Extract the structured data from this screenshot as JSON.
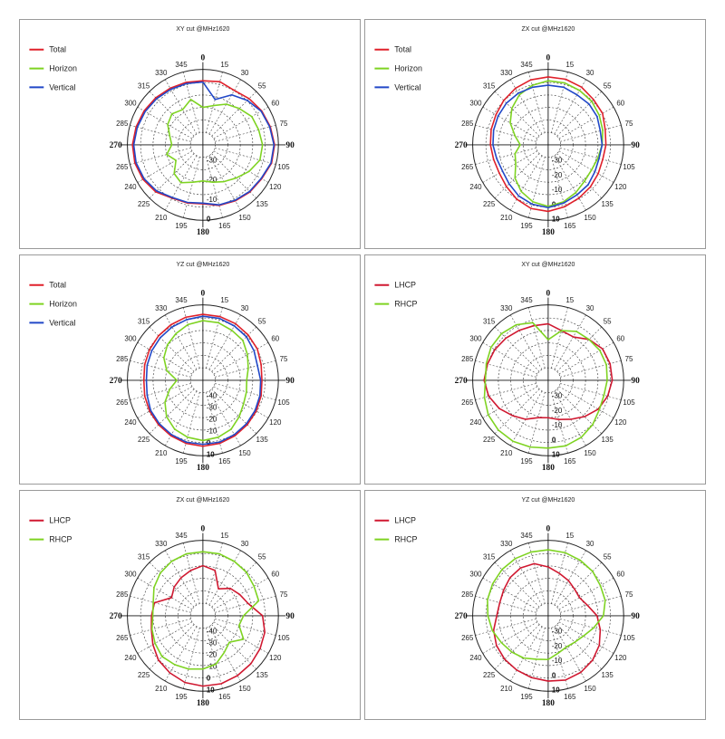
{
  "chart_data": [
    {
      "type": "polar_line",
      "title": "XY cut @MHz1620",
      "theta_ticks": [
        "0",
        "15",
        "30",
        "55",
        "60",
        "75",
        "90",
        "105",
        "120",
        "135",
        "150",
        "165",
        "180",
        "195",
        "210",
        "225",
        "240",
        "265",
        "270",
        "285",
        "300",
        "315",
        "330",
        "345"
      ],
      "radial_labels": [
        "-30",
        "-20",
        "-10",
        "0"
      ],
      "legend": "top-left",
      "series": [
        {
          "name": "Total",
          "color": "#e0202a",
          "values": [
            0.82,
            0.84,
            0.8,
            0.84,
            0.88,
            0.91,
            0.94,
            0.93,
            0.88,
            0.86,
            0.83,
            0.8,
            0.74,
            0.76,
            0.78,
            0.86,
            0.9,
            0.92,
            0.92,
            0.9,
            0.88,
            0.86,
            0.84,
            0.83,
            0.82
          ]
        },
        {
          "name": "Horizon",
          "color": "#7ed321",
          "values": [
            0.4,
            0.45,
            0.55,
            0.62,
            0.7,
            0.72,
            0.75,
            0.74,
            0.65,
            0.55,
            0.48,
            0.42,
            0.38,
            0.42,
            0.5,
            0.45,
            0.3,
            0.4,
            0.3,
            0.35,
            0.45,
            0.5,
            0.45,
            0.55,
            0.4
          ]
        },
        {
          "name": "Vertical",
          "color": "#2148c8",
          "values": [
            0.8,
            0.55,
            0.72,
            0.8,
            0.87,
            0.9,
            0.93,
            0.92,
            0.87,
            0.85,
            0.82,
            0.79,
            0.73,
            0.75,
            0.77,
            0.84,
            0.88,
            0.9,
            0.9,
            0.88,
            0.86,
            0.84,
            0.82,
            0.81,
            0.8
          ]
        }
      ]
    },
    {
      "type": "polar_line",
      "title": "ZX cut @MHz1620",
      "theta_ticks": [
        "0",
        "15",
        "30",
        "55",
        "60",
        "75",
        "90",
        "105",
        "120",
        "135",
        "150",
        "165",
        "180",
        "195",
        "210",
        "225",
        "240",
        "265",
        "270",
        "285",
        "300",
        "315",
        "330",
        "345"
      ],
      "radial_labels": [
        "-30",
        "-20",
        "-10",
        "0",
        "10"
      ],
      "legend": "top-left",
      "series": [
        {
          "name": "Total",
          "color": "#e0202a",
          "values": [
            0.88,
            0.88,
            0.86,
            0.82,
            0.8,
            0.74,
            0.72,
            0.7,
            0.72,
            0.75,
            0.78,
            0.82,
            0.86,
            0.85,
            0.8,
            0.74,
            0.7,
            0.7,
            0.72,
            0.74,
            0.76,
            0.8,
            0.84,
            0.87,
            0.88
          ]
        },
        {
          "name": "Horizon",
          "color": "#7ed321",
          "values": [
            0.82,
            0.82,
            0.8,
            0.78,
            0.74,
            0.7,
            0.66,
            0.62,
            0.6,
            0.62,
            0.68,
            0.74,
            0.78,
            0.74,
            0.66,
            0.55,
            0.4,
            0.35,
            0.25,
            0.35,
            0.5,
            0.62,
            0.72,
            0.78,
            0.82
          ]
        },
        {
          "name": "Vertical",
          "color": "#2148c8",
          "values": [
            0.75,
            0.75,
            0.72,
            0.72,
            0.7,
            0.66,
            0.66,
            0.64,
            0.66,
            0.7,
            0.72,
            0.76,
            0.8,
            0.78,
            0.74,
            0.68,
            0.64,
            0.65,
            0.68,
            0.7,
            0.72,
            0.74,
            0.75,
            0.75,
            0.75
          ]
        }
      ]
    },
    {
      "type": "polar_line",
      "title": "YZ cut @MHz1620",
      "theta_ticks": [
        "0",
        "15",
        "30",
        "55",
        "60",
        "75",
        "90",
        "105",
        "120",
        "135",
        "150",
        "165",
        "180",
        "195",
        "210",
        "225",
        "240",
        "265",
        "270",
        "285",
        "300",
        "315",
        "330",
        "345"
      ],
      "radial_labels": [
        "-40",
        "-30",
        "-20",
        "-10",
        "0",
        "10"
      ],
      "legend": "top-left",
      "series": [
        {
          "name": "Total",
          "color": "#e0202a",
          "values": [
            0.85,
            0.85,
            0.84,
            0.82,
            0.8,
            0.76,
            0.74,
            0.76,
            0.78,
            0.8,
            0.82,
            0.84,
            0.85,
            0.84,
            0.82,
            0.8,
            0.78,
            0.76,
            0.74,
            0.76,
            0.78,
            0.8,
            0.82,
            0.84,
            0.85
          ]
        },
        {
          "name": "Horizon",
          "color": "#7ed321",
          "values": [
            0.75,
            0.75,
            0.72,
            0.7,
            0.62,
            0.55,
            0.5,
            0.52,
            0.55,
            0.62,
            0.7,
            0.74,
            0.76,
            0.74,
            0.7,
            0.62,
            0.5,
            0.35,
            0.22,
            0.4,
            0.52,
            0.6,
            0.66,
            0.72,
            0.75
          ]
        },
        {
          "name": "Vertical",
          "color": "#2148c8",
          "values": [
            0.82,
            0.82,
            0.8,
            0.78,
            0.74,
            0.7,
            0.72,
            0.74,
            0.76,
            0.78,
            0.8,
            0.82,
            0.82,
            0.82,
            0.8,
            0.78,
            0.76,
            0.72,
            0.7,
            0.72,
            0.74,
            0.76,
            0.78,
            0.8,
            0.82
          ]
        }
      ]
    },
    {
      "type": "polar_line",
      "title": "XY cut @MHz1620",
      "theta_ticks": [
        "0",
        "15",
        "30",
        "55",
        "60",
        "75",
        "90",
        "105",
        "120",
        "135",
        "150",
        "165",
        "180",
        "195",
        "210",
        "225",
        "240",
        "265",
        "270",
        "285",
        "300",
        "315",
        "330",
        "345"
      ],
      "radial_labels": [
        "-30",
        "-20",
        "-10",
        "0",
        "10"
      ],
      "legend": "top-left",
      "series": [
        {
          "name": "LHCP",
          "color": "#d01830",
          "values": [
            0.7,
            0.62,
            0.6,
            0.72,
            0.8,
            0.82,
            0.82,
            0.78,
            0.72,
            0.62,
            0.52,
            0.45,
            0.4,
            0.42,
            0.52,
            0.6,
            0.7,
            0.78,
            0.82,
            0.8,
            0.78,
            0.75,
            0.72,
            0.7,
            0.7
          ]
        },
        {
          "name": "RHCP",
          "color": "#7ed321",
          "values": [
            0.45,
            0.62,
            0.7,
            0.72,
            0.75,
            0.76,
            0.74,
            0.72,
            0.74,
            0.8,
            0.85,
            0.88,
            0.88,
            0.9,
            0.92,
            0.92,
            0.9,
            0.85,
            0.8,
            0.82,
            0.85,
            0.85,
            0.82,
            0.75,
            0.45
          ]
        }
      ]
    },
    {
      "type": "polar_line",
      "title": "ZX cut @MHz1620",
      "theta_ticks": [
        "0",
        "15",
        "30",
        "55",
        "60",
        "75",
        "90",
        "105",
        "120",
        "135",
        "150",
        "165",
        "180",
        "195",
        "210",
        "225",
        "240",
        "265",
        "270",
        "285",
        "300",
        "315",
        "330",
        "345"
      ],
      "radial_labels": [
        "-40",
        "-30",
        "-20",
        "-10",
        "0",
        "10"
      ],
      "legend": "top-left",
      "series": [
        {
          "name": "LHCP",
          "color": "#d01830",
          "values": [
            0.6,
            0.55,
            0.3,
            0.42,
            0.48,
            0.55,
            0.75,
            0.82,
            0.85,
            0.88,
            0.9,
            0.92,
            0.92,
            0.9,
            0.85,
            0.8,
            0.72,
            0.65,
            0.62,
            0.6,
            0.38,
            0.45,
            0.5,
            0.55,
            0.6
          ]
        },
        {
          "name": "RHCP",
          "color": "#7ed321",
          "values": [
            0.82,
            0.82,
            0.8,
            0.78,
            0.74,
            0.72,
            0.45,
            0.4,
            0.55,
            0.4,
            0.48,
            0.6,
            0.65,
            0.68,
            0.7,
            0.72,
            0.68,
            0.64,
            0.6,
            0.62,
            0.7,
            0.76,
            0.8,
            0.82,
            0.82
          ]
        }
      ]
    },
    {
      "type": "polar_line",
      "title": "YZ cut @MHz1620",
      "theta_ticks": [
        "0",
        "15",
        "30",
        "55",
        "60",
        "75",
        "90",
        "105",
        "120",
        "135",
        "150",
        "165",
        "180",
        "195",
        "210",
        "225",
        "240",
        "265",
        "270",
        "285",
        "300",
        "315",
        "330",
        "345"
      ],
      "radial_labels": [
        "-30",
        "-20",
        "-10",
        "0",
        "10"
      ],
      "legend": "top-left",
      "series": [
        {
          "name": "LHCP",
          "color": "#d01830",
          "values": [
            0.58,
            0.5,
            0.45,
            0.4,
            0.38,
            0.45,
            0.58,
            0.66,
            0.74,
            0.8,
            0.84,
            0.86,
            0.84,
            0.82,
            0.8,
            0.78,
            0.75,
            0.7,
            0.62,
            0.6,
            0.62,
            0.66,
            0.68,
            0.66,
            0.58
          ]
        },
        {
          "name": "RHCP",
          "color": "#7ed321",
          "values": [
            0.85,
            0.84,
            0.82,
            0.8,
            0.76,
            0.74,
            0.68,
            0.55,
            0.45,
            0.4,
            0.38,
            0.42,
            0.5,
            0.52,
            0.58,
            0.62,
            0.66,
            0.72,
            0.76,
            0.8,
            0.82,
            0.84,
            0.85,
            0.85,
            0.85
          ]
        }
      ]
    }
  ]
}
